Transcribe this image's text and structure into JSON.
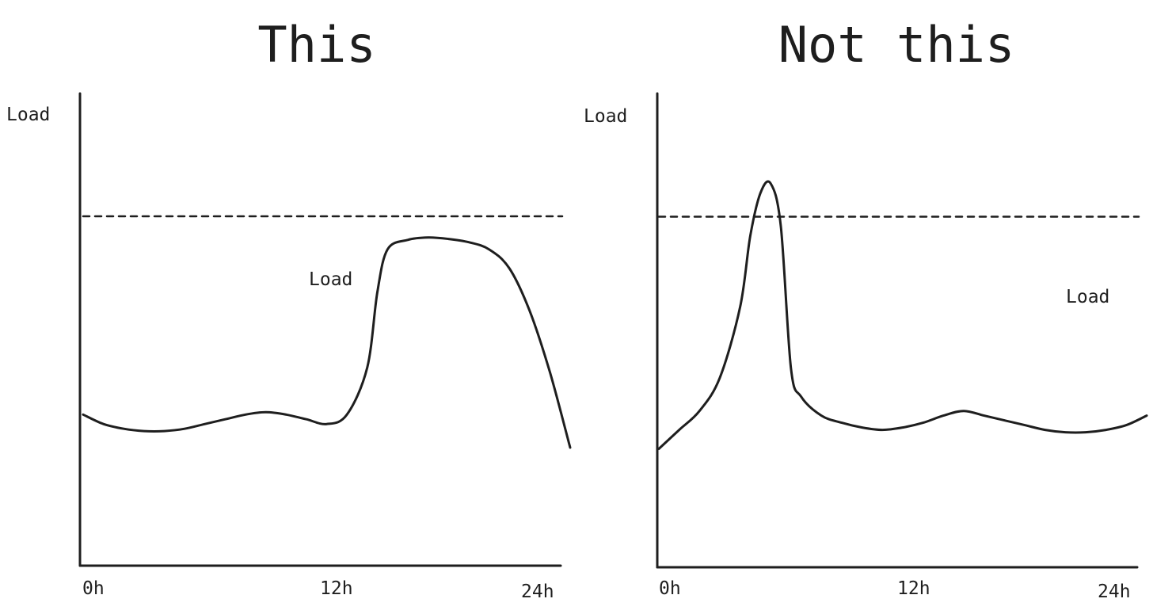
{
  "chart_data": [
    {
      "type": "line",
      "title": "This",
      "ylabel": "Load",
      "series_label": "Load",
      "x_ticks": [
        "0h",
        "12h",
        "24h"
      ],
      "xlim": [
        0,
        24
      ],
      "ylim": [
        0,
        100
      ],
      "threshold": 74,
      "series": [
        {
          "x": [
            0,
            1,
            2,
            3,
            4,
            5,
            6,
            7,
            8,
            9,
            10,
            11,
            12,
            13,
            14,
            14.5,
            15,
            16,
            17,
            18,
            19,
            20,
            21,
            22,
            23,
            24
          ],
          "y": [
            32,
            30,
            29,
            28.5,
            28.5,
            29,
            30,
            31,
            32,
            32.5,
            32,
            31,
            30,
            32,
            42,
            58,
            67,
            69,
            69.5,
            69.2,
            68.5,
            67,
            63,
            54,
            41,
            25
          ]
        }
      ]
    },
    {
      "type": "line",
      "title": "Not this",
      "ylabel": "Load",
      "series_label": "Load",
      "x_ticks": [
        "0h",
        "12h",
        "24h"
      ],
      "xlim": [
        0,
        24
      ],
      "ylim": [
        0,
        100
      ],
      "threshold": 74,
      "series": [
        {
          "x": [
            0,
            1,
            2,
            3,
            4,
            4.5,
            5,
            5.5,
            6,
            6.5,
            7,
            8,
            9,
            10,
            11,
            12,
            13,
            14,
            15,
            16,
            17,
            18,
            19,
            20,
            21,
            22,
            23,
            24
          ],
          "y": [
            25,
            29,
            33,
            40,
            55,
            70,
            79,
            81,
            72,
            42,
            36,
            32,
            30.5,
            29.5,
            29,
            29.5,
            30.5,
            32,
            33,
            32,
            31,
            30,
            29,
            28.5,
            28.5,
            29,
            30,
            32
          ]
        }
      ]
    }
  ]
}
